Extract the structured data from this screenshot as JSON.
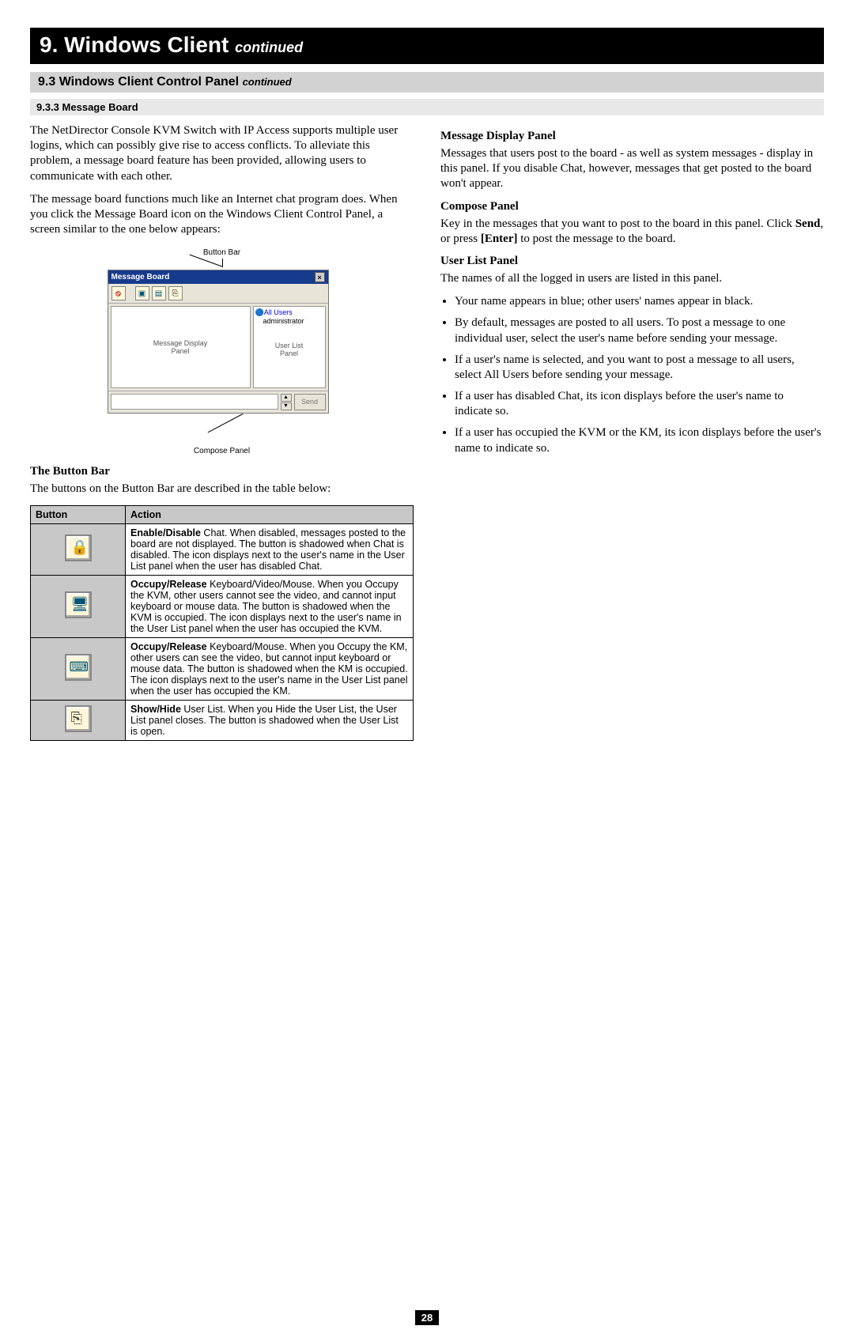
{
  "banner": {
    "num": "9.",
    "title": "Windows Client",
    "cont": "continued"
  },
  "subbanner": {
    "num": "9.3",
    "title": "Windows Client Control Panel",
    "cont": "continued"
  },
  "section": {
    "num": "9.3.3",
    "title": "Message Board"
  },
  "left": {
    "p1": "The NetDirector Console KVM Switch with IP Access supports multiple user logins, which can possibly give rise to access conflicts. To alleviate this problem, a message board feature has been provided, allowing users to communicate with each other.",
    "p2": "The message board functions much like an Internet chat program does. When you click the Message Board icon on the Windows Client Control Panel, a screen similar to the one below appears:",
    "diag": {
      "top_label": "Button Bar",
      "window_title": "Message Board",
      "allusers": "All Users",
      "user1": "administrator",
      "display_label": "Message Display\nPanel",
      "userlist_label": "User List\nPanel",
      "send": "Send",
      "bottom_label": "Compose Panel"
    },
    "h_buttonbar": "The Button Bar",
    "p_buttonbar": "The buttons on the Button Bar are described in the table below:",
    "table": {
      "h1": "Button",
      "h2": "Action",
      "rows": [
        {
          "icon": "chat",
          "bold": "Enable/Disable",
          "rest": " Chat. When disabled, messages posted to the board are not displayed. The button is shadowed when Chat is disabled. The icon displays next to the user's name in the User List panel when the user has disabled Chat."
        },
        {
          "icon": "kvm",
          "bold": "Occupy/Release",
          "rest": " Keyboard/Video/Mouse. When you Occupy the KVM, other users cannot see the video, and cannot input keyboard or mouse data. The button is shadowed when the KVM is occupied. The icon displays next to the user's name in the User List panel when the user has occupied the KVM."
        },
        {
          "icon": "km",
          "bold": "Occupy/Release",
          "rest": " Keyboard/Mouse. When you Occupy the KM, other users can see the video, but cannot input keyboard or mouse data. The button is shadowed when the KM is occupied. The icon displays next to the user's name in the User List panel when the user has occupied the KM."
        },
        {
          "icon": "ul",
          "bold": "Show/Hide",
          "rest": " User List. When you Hide the User List, the User List panel closes. The button is shadowed when the User List is open."
        }
      ]
    }
  },
  "right": {
    "h_mdp": "Message Display Panel",
    "p_mdp": "Messages that users post to the board - as well as system messages - display in this panel. If you disable Chat, however, messages that get posted to the board won't appear.",
    "h_cp": "Compose Panel",
    "p_cp_a": "Key in the messages that you want to post to the board in this panel. Click ",
    "p_cp_send": "Send",
    "p_cp_b": ", or press ",
    "p_cp_enter": "[Enter]",
    "p_cp_c": " to post the message to the board.",
    "h_ulp": "User List Panel",
    "p_ulp": "The names of all the logged in users are listed in this panel.",
    "bullets": [
      "Your name appears in blue; other users' names appear in black.",
      "By default, messages are posted to all users. To post a message to one individual user, select the user's name before sending your message.",
      "If a user's name is selected, and you want to post a message to all users, select All Users before sending your message.",
      "If a user has disabled Chat, its icon displays before the user's name to indicate so.",
      "If a user has occupied the KVM or the KM, its icon displays before the user's name to indicate so."
    ]
  },
  "page_number": "28"
}
